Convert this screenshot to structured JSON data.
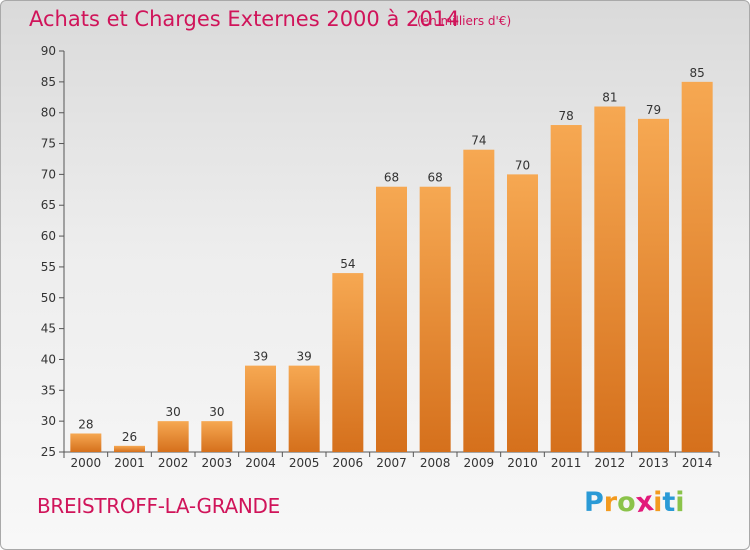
{
  "title": "Achats et Charges Externes 2000 à 2014",
  "subtitle": "(en milliers d'€)",
  "commune": "BREISTROFF-LA-GRANDE",
  "logo": {
    "letters": [
      "P",
      "r",
      "o",
      "x",
      "i",
      "t",
      "i"
    ],
    "colors": [
      "#2a9ad6",
      "#f39a1e",
      "#8bc34a",
      "#e2197a",
      "#f39a1e",
      "#2a9ad6",
      "#8bc34a"
    ]
  },
  "colors": {
    "bar_light": "#f6a852",
    "bar_dark": "#d5701c",
    "accent": "#d0145a"
  },
  "chart_data": {
    "type": "bar",
    "title": "Achats et Charges Externes 2000 à 2014",
    "subtitle": "(en milliers d'€)",
    "categories": [
      "2000",
      "2001",
      "2002",
      "2003",
      "2004",
      "2005",
      "2006",
      "2007",
      "2008",
      "2009",
      "2010",
      "2011",
      "2012",
      "2013",
      "2014"
    ],
    "values": [
      28,
      26,
      30,
      30,
      39,
      39,
      54,
      68,
      68,
      74,
      70,
      78,
      81,
      79,
      85
    ],
    "ylim": [
      25,
      90
    ],
    "yticks": [
      25,
      30,
      35,
      40,
      45,
      50,
      55,
      60,
      65,
      70,
      75,
      80,
      85,
      90
    ],
    "xlabel": "",
    "ylabel": "",
    "grid": false,
    "data_labels": true
  }
}
